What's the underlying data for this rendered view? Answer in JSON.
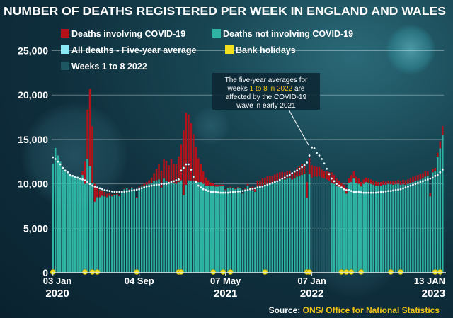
{
  "chart_data": {
    "type": "bar",
    "title": "NUMBER OF DEATHS REGISTERED PER WEEK IN ENGLAND AND WALES",
    "ylim": [
      0,
      26000
    ],
    "yticks": [
      0,
      5000,
      10000,
      15000,
      20000,
      25000
    ],
    "ytick_labels": [
      "0",
      "5,000",
      "10,000",
      "15,000",
      "20,000",
      "25,000"
    ],
    "xtick_labels": [
      {
        "index": 0,
        "line1": "03 Jan",
        "line2": "2020"
      },
      {
        "index": 35,
        "line1": "04 Sep",
        "line2": ""
      },
      {
        "index": 70,
        "line1": "07 May",
        "line2": "2021"
      },
      {
        "index": 105,
        "line1": "07 Jan",
        "line2": "2022"
      },
      {
        "index": 157,
        "line1": "13 JAN",
        "line2": "2023"
      }
    ],
    "legend": [
      {
        "label": "Deaths involving COVID-19",
        "color": "#b3121a"
      },
      {
        "label": "Deaths not involving COVID-19",
        "color": "#2fb3a3"
      },
      {
        "label": "All deaths - Five-year average",
        "color": "#8ae8f5"
      },
      {
        "label": "Bank holidays",
        "color": "#f2df1f"
      },
      {
        "label": "Weeks 1 to 8 2022",
        "color": "#1d5560"
      }
    ],
    "annotation": "The five-year averages for weeks 1 to 8 in 2022 are affected by the COVID-19 wave in early 2021",
    "source_label": "Source:",
    "source_text": "ONS/ Office for National Statistics",
    "weeks": 159,
    "weeks_2022_1_to_8": [
      105,
      106,
      107,
      108,
      109,
      110,
      111,
      112
    ],
    "bank_holiday_weeks": [
      0,
      13,
      16,
      18,
      34,
      51,
      52,
      65,
      69,
      72,
      86,
      103,
      104,
      117,
      119,
      121,
      125,
      137,
      141,
      155,
      157
    ],
    "non_covid_deaths": [
      12250,
      14050,
      13200,
      12500,
      11600,
      11400,
      11150,
      11100,
      10950,
      10800,
      10800,
      10600,
      11000,
      10000,
      12850,
      12000,
      10100,
      8000,
      8500,
      8500,
      8650,
      8600,
      8500,
      8650,
      8600,
      8700,
      8800,
      8600,
      9100,
      9400,
      9500,
      9350,
      9600,
      9200,
      8450,
      9600,
      9700,
      9800,
      9900,
      10000,
      10100,
      10300,
      10400,
      10500,
      9600,
      10600,
      10300,
      10200,
      10100,
      10050,
      10000,
      10200,
      10400,
      8700,
      9900,
      10400,
      10350,
      10300,
      10200,
      10200,
      10200,
      10000,
      9800,
      9800,
      9750,
      9750,
      9700,
      9700,
      9750,
      9750,
      9300,
      9500,
      9600,
      9500,
      9400,
      9600,
      9500,
      8900,
      9400,
      9800,
      9300,
      9300,
      9100,
      9700,
      9700,
      9800,
      9900,
      10000,
      10000,
      10100,
      10200,
      10300,
      10400,
      10500,
      10500,
      10600,
      10700,
      10500,
      10600,
      10800,
      10900,
      11000,
      11100,
      8400,
      11100,
      10700,
      10800,
      10800,
      10900,
      10700,
      10600,
      10500,
      10300,
      10100,
      10000,
      9800,
      9650,
      9500,
      9300,
      8900,
      10100,
      10200,
      10600,
      10100,
      10000,
      9700,
      10000,
      10200,
      10100,
      10000,
      9900,
      9800,
      9800,
      9800,
      9900,
      9900,
      10000,
      9950,
      9900,
      9950,
      10000,
      9900,
      9950,
      9900,
      10000,
      10100,
      10200,
      10300,
      10400,
      10500,
      10600,
      10800,
      10900,
      8600,
      11300,
      11400,
      13000,
      14000,
      15500
    ],
    "covid_deaths": [
      0,
      0,
      0,
      0,
      0,
      0,
      0,
      0,
      0,
      0,
      0,
      0,
      400,
      2500,
      5500,
      8700,
      6400,
      2000,
      1000,
      800,
      600,
      500,
      400,
      300,
      200,
      150,
      100,
      90,
      80,
      70,
      60,
      60,
      50,
      60,
      80,
      100,
      140,
      200,
      300,
      400,
      600,
      900,
      1300,
      1700,
      1900,
      2200,
      2300,
      1900,
      2700,
      2200,
      2200,
      2900,
      4000,
      7300,
      8100,
      7400,
      6500,
      5300,
      3900,
      2700,
      2000,
      1400,
      900,
      600,
      400,
      300,
      200,
      200,
      150,
      150,
      100,
      100,
      90,
      80,
      80,
      80,
      90,
      100,
      150,
      200,
      300,
      400,
      500,
      650,
      700,
      800,
      800,
      850,
      900,
      800,
      850,
      900,
      900,
      850,
      800,
      800,
      800,
      700,
      800,
      1000,
      1100,
      1200,
      1200,
      1800,
      1800,
      1400,
      1200,
      1100,
      1000,
      900,
      800,
      900,
      1000,
      1200,
      1000,
      800,
      700,
      600,
      600,
      600,
      500,
      800,
      800,
      700,
      600,
      500,
      500,
      500,
      500,
      500,
      450,
      450,
      400,
      400,
      400,
      350,
      350,
      400,
      400,
      400,
      450,
      450,
      500,
      500,
      500,
      550,
      600,
      600,
      600,
      600,
      600,
      600,
      500,
      400,
      400,
      400,
      500,
      800,
      1000
    ],
    "five_year_average": [
      13000,
      12800,
      12500,
      12200,
      11800,
      11500,
      11300,
      11000,
      10900,
      10800,
      10700,
      10600,
      10500,
      10400,
      10200,
      10000,
      9800,
      9700,
      9600,
      9500,
      9400,
      9300,
      9250,
      9200,
      9150,
      9100,
      9100,
      9100,
      9100,
      9100,
      9150,
      9200,
      9250,
      9300,
      9350,
      9400,
      9500,
      9600,
      9700,
      9750,
      9800,
      9850,
      9900,
      9900,
      10000,
      10000,
      10000,
      10100,
      10200,
      10300,
      10400,
      10500,
      11500,
      11800,
      12200,
      12200,
      11600,
      10800,
      10200,
      9800,
      9600,
      9400,
      9300,
      9200,
      9100,
      9100,
      9100,
      9050,
      9000,
      9000,
      9000,
      9000,
      9050,
      9100,
      9100,
      9150,
      9150,
      9200,
      9250,
      9300,
      9400,
      9450,
      9500,
      9600,
      9650,
      9700,
      9800,
      9900,
      10000,
      10100,
      10200,
      10300,
      10450,
      10600,
      10700,
      10900,
      11000,
      11200,
      11400,
      11500,
      11700,
      11900,
      12100,
      12400,
      13200,
      14100,
      14000,
      13500,
      13200,
      12800,
      12300,
      11700,
      11100,
      10600,
      10300,
      10000,
      9800,
      9600,
      9400,
      9300,
      9300,
      9200,
      9100,
      9100,
      9100,
      9050,
      9000,
      9000,
      9000,
      9000,
      9000,
      9000,
      9050,
      9100,
      9100,
      9150,
      9200,
      9200,
      9250,
      9300,
      9350,
      9400,
      9500,
      9600,
      9700,
      9800,
      9900,
      10000,
      10100,
      10200,
      10300,
      10400,
      10500,
      10600,
      10700,
      10900,
      11000,
      11300,
      11600
    ]
  }
}
